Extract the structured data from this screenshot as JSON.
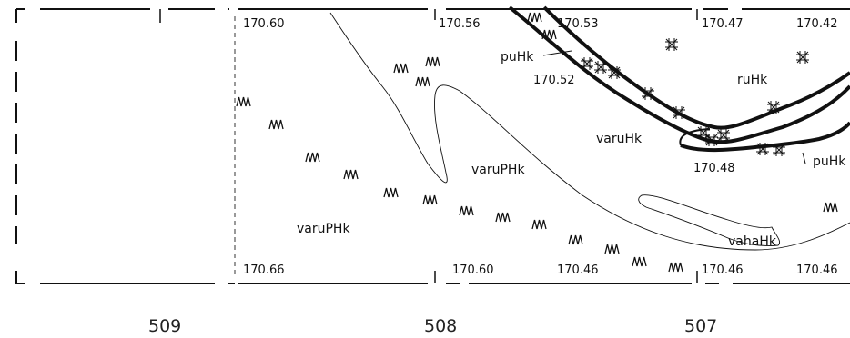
{
  "map": {
    "elevations_top": [
      "170.60",
      "170.56",
      "170.53",
      "170.47",
      "170.42"
    ],
    "elevations_bottom": [
      "170.66",
      "170.60",
      "170.46",
      "170.46",
      "170.46"
    ],
    "elevations_inner": [
      "170.52",
      "170.48"
    ],
    "unit_labels": {
      "puhk_top": "puHk",
      "ruhk": "ruHk",
      "varuhk": "varuHk",
      "varuphk_center": "varuPHk",
      "varuphk_left": "varuPHk",
      "puhk_right": "puHk",
      "vahahk": "vahaHk"
    },
    "grid_numbers": [
      "509",
      "508",
      "507"
    ]
  }
}
